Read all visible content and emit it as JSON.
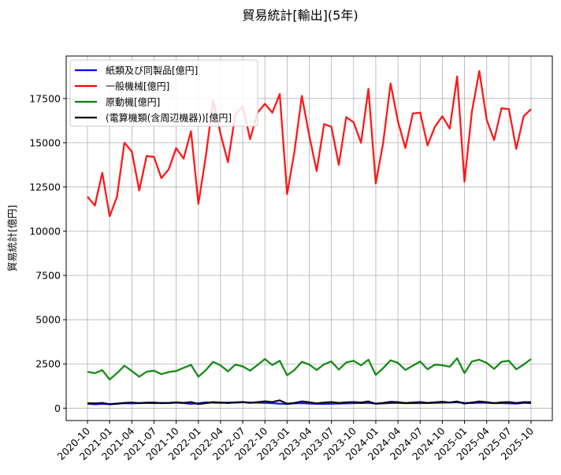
{
  "chart_data": {
    "type": "line",
    "title": "貿易統計[輸出](5年)",
    "xlabel": "",
    "ylabel": "貿易統計[億円]",
    "ylim": [
      -700,
      19900
    ],
    "yticks": [
      0,
      2500,
      5000,
      7500,
      10000,
      12500,
      15000,
      17500
    ],
    "ytick_labels": [
      "0",
      "2500",
      "5000",
      "7500",
      "10000",
      "12500",
      "15000",
      "17500"
    ],
    "xticks": [
      "2020-10",
      "2021-01",
      "2021-04",
      "2021-07",
      "2021-10",
      "2022-01",
      "2022-04",
      "2022-07",
      "2022-10",
      "2023-01",
      "2023-04",
      "2023-07",
      "2023-10",
      "2024-01",
      "2024-04",
      "2024-07",
      "2024-10",
      "2025-01",
      "2025-04",
      "2025-07",
      "2025-10"
    ],
    "grid": true,
    "legend_position": "top-left",
    "x": [
      "2020-10",
      "2020-11",
      "2020-12",
      "2021-01",
      "2021-02",
      "2021-03",
      "2021-04",
      "2021-05",
      "2021-06",
      "2021-07",
      "2021-08",
      "2021-09",
      "2021-10",
      "2021-11",
      "2021-12",
      "2022-01",
      "2022-02",
      "2022-03",
      "2022-04",
      "2022-05",
      "2022-06",
      "2022-07",
      "2022-08",
      "2022-09",
      "2022-10",
      "2022-11",
      "2022-12",
      "2023-01",
      "2023-02",
      "2023-03",
      "2023-04",
      "2023-05",
      "2023-06",
      "2023-07",
      "2023-08",
      "2023-09",
      "2023-10",
      "2023-11",
      "2023-12",
      "2024-01",
      "2024-02",
      "2024-03",
      "2024-04",
      "2024-05",
      "2024-06",
      "2024-07",
      "2024-08",
      "2024-09",
      "2024-10",
      "2024-11",
      "2024-12",
      "2025-01",
      "2025-02",
      "2025-03",
      "2025-04",
      "2025-05",
      "2025-06",
      "2025-07",
      "2025-08",
      "2025-09",
      "2025-10"
    ],
    "series": [
      {
        "name": "紙類及び同製品[億円]",
        "color": "#0000ff",
        "values": [
          250,
          220,
          240,
          230,
          260,
          280,
          270,
          290,
          300,
          280,
          300,
          290,
          310,
          290,
          240,
          280,
          330,
          310,
          300,
          320,
          310,
          330,
          320,
          310,
          300,
          280,
          250,
          240,
          270,
          280,
          260,
          250,
          240,
          250,
          260,
          270,
          280,
          290,
          300,
          260,
          270,
          290,
          300,
          280,
          290,
          280,
          290,
          300,
          310,
          320,
          330,
          300,
          290,
          310,
          300,
          290,
          280,
          270,
          260,
          300,
          280
        ]
      },
      {
        "name": "一般機械[億円]",
        "color": "#ff0000",
        "values": [
          11950,
          11450,
          13300,
          10850,
          11950,
          15000,
          14500,
          12300,
          14250,
          14200,
          13000,
          13500,
          14700,
          14100,
          15650,
          11550,
          14200,
          17400,
          15500,
          13900,
          16600,
          17050,
          15200,
          16700,
          17200,
          16700,
          17750,
          12100,
          14500,
          17650,
          15400,
          13400,
          16050,
          15900,
          13750,
          16450,
          16150,
          15000,
          18050,
          12700,
          15000,
          18350,
          16200,
          14700,
          16650,
          16700,
          14850,
          15900,
          16500,
          15800,
          18750,
          12800,
          16750,
          19050,
          16300,
          15150,
          16950,
          16900,
          14650,
          16500,
          16900
        ]
      },
      {
        "name": "原動機[億円]",
        "color": "#008000",
        "values": [
          2050,
          1980,
          2150,
          1620,
          1980,
          2400,
          2100,
          1780,
          2060,
          2120,
          1920,
          2040,
          2100,
          2280,
          2450,
          1780,
          2140,
          2620,
          2420,
          2080,
          2460,
          2360,
          2120,
          2440,
          2780,
          2440,
          2680,
          1860,
          2160,
          2620,
          2460,
          2160,
          2480,
          2640,
          2180,
          2580,
          2680,
          2420,
          2740,
          1880,
          2260,
          2700,
          2560,
          2160,
          2400,
          2640,
          2200,
          2460,
          2420,
          2340,
          2820,
          1980,
          2640,
          2740,
          2560,
          2220,
          2620,
          2680,
          2200,
          2460,
          2780
        ]
      },
      {
        "name": "(電算機類(含周辺機器))[億円]",
        "color": "#000000",
        "values": [
          280,
          270,
          300,
          220,
          250,
          300,
          320,
          280,
          310,
          320,
          280,
          300,
          330,
          300,
          350,
          230,
          280,
          340,
          320,
          290,
          330,
          350,
          300,
          340,
          390,
          350,
          440,
          250,
          300,
          380,
          340,
          270,
          320,
          350,
          300,
          330,
          350,
          320,
          380,
          250,
          300,
          360,
          340,
          290,
          320,
          350,
          300,
          330,
          360,
          320,
          380,
          260,
          320,
          380,
          340,
          280,
          330,
          350,
          290,
          340,
          340
        ]
      }
    ]
  }
}
